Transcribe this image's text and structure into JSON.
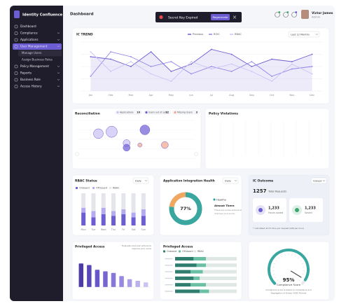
{
  "sidebar": {
    "brand": "Identity Confluence",
    "menu": [
      {
        "label": "Dashboard"
      },
      {
        "label": "Compliance",
        "expandable": true
      },
      {
        "label": "Applications",
        "expandable": true
      },
      {
        "label": "User Management",
        "expandable": true,
        "active": true,
        "children": [
          "Manage Users",
          "Assign Business Roles"
        ]
      },
      {
        "label": "Policy Management",
        "expandable": true
      },
      {
        "label": "Reports",
        "expandable": true
      },
      {
        "label": "Business Role",
        "expandable": true
      },
      {
        "label": "Access History",
        "expandable": true
      }
    ]
  },
  "header": {
    "title": "Dashboard",
    "toast": "Secret Key Expired",
    "toast_button": "Regenerate",
    "user_name": "Victor James",
    "user_role": "Admin"
  },
  "policy_violations": {
    "title": "Policy Violations"
  },
  "ic_outcome": {
    "title": "IC Outcome",
    "filter": "Groups",
    "total": 1257,
    "total_label": "Total Requests",
    "cards": [
      {
        "value": "1,233",
        "label": "Hours saved",
        "color": "#6c5dd3"
      },
      {
        "value": "1,233",
        "label": "Saved",
        "color": "#3fa46a"
      }
    ],
    "footnote": "* calculated at 15 mins per request ($40 per hour)"
  },
  "chart_data": [
    {
      "type": "line",
      "title": "IC TREND",
      "filter": "Last 12 Months",
      "categories": [
        "Jan",
        "Feb",
        "Mar",
        "Apr",
        "May",
        "Jun",
        "Jul",
        "Aug",
        "Sep",
        "Oct",
        "Nov",
        "Dec"
      ],
      "ylim": [
        0,
        100
      ],
      "yticks": [
        0,
        25,
        50,
        75,
        100
      ],
      "grid": true,
      "series": [
        {
          "name": "Previous",
          "color": "#6c5dd3",
          "area": true,
          "values": [
            70,
            65,
            50,
            80,
            40,
            55,
            85,
            75,
            50,
            65,
            60,
            75
          ]
        },
        {
          "name": "ROIC",
          "color": "#8f84e8",
          "values": [
            30,
            80,
            70,
            50,
            60,
            35,
            50,
            40,
            60,
            30,
            45,
            50
          ]
        },
        {
          "name": "RBAC",
          "color": "#c9c3f5",
          "values": [
            80,
            40,
            60,
            35,
            20,
            60,
            45,
            55,
            40,
            20,
            55,
            35
          ]
        }
      ]
    },
    {
      "type": "scatter",
      "title": "Reconciliation",
      "xlim": [
        0,
        7
      ],
      "ylim": [
        0,
        100
      ],
      "series": [
        {
          "name": "Applications",
          "count": 10,
          "color": "#c7c0f4",
          "x": [
            1.2,
            2.0,
            2.9
          ],
          "y": [
            65,
            70,
            40
          ],
          "size": [
            7,
            8,
            5
          ]
        },
        {
          "name": "Users out of sync",
          "count": 12,
          "color": "#6c5dd3",
          "x": [
            4.0,
            2.9
          ],
          "y": [
            75,
            28
          ],
          "size": [
            7,
            5
          ]
        },
        {
          "name": "Missing Users",
          "count": 3,
          "color": "#f4a58a",
          "x": [
            5.2,
            3.7
          ],
          "y": [
            35,
            35
          ],
          "size": [
            5,
            3
          ]
        }
      ]
    },
    {
      "type": "bar",
      "stacked": true,
      "title": "RBAC Status",
      "filter": "Daily",
      "categories": [
        "Mon",
        "Tue",
        "Wed",
        "Thu",
        "Fri",
        "Sat",
        "Sun"
      ],
      "ylim": [
        0,
        100
      ],
      "series": [
        {
          "name": "Onboard",
          "color": "#6c5dd3",
          "values": [
            40,
            25,
            35,
            30,
            35,
            25,
            30
          ]
        },
        {
          "name": "Off-board",
          "color": "#b3aaf0",
          "values": [
            15,
            20,
            20,
            15,
            15,
            15,
            20
          ]
        },
        {
          "name": "RBAC",
          "color": "#e4e6ec",
          "values": [
            45,
            55,
            45,
            55,
            50,
            60,
            50
          ]
        }
      ]
    },
    {
      "type": "pie",
      "title": "Application Integration Health",
      "filter": "Daily",
      "categories": [
        "Healthy",
        null
      ],
      "values": [
        77,
        23
      ],
      "colors": [
        "#3aa6a0",
        "#f0a860"
      ],
      "center_label": "77%",
      "status": "Almost There",
      "status_note": [
        "There are some actions to",
        "improve your score"
      ]
    },
    {
      "type": "bar",
      "title": "Privileged Access",
      "subtitle": [
        "Evaluate more bar actions to",
        "improve your score"
      ],
      "categories": [
        null,
        null,
        null,
        null,
        null,
        null,
        null,
        null,
        null
      ],
      "values": [
        75,
        70,
        55,
        50,
        45,
        35,
        25,
        20,
        15
      ],
      "ylim": [
        0,
        100
      ],
      "colors": [
        "#4b3aa8",
        "#5847b8",
        "#6656c8",
        "#7666d3",
        "#8677db",
        "#9789e2",
        "#a99de8",
        "#bab1ee",
        "#cbc4f3"
      ]
    },
    {
      "type": "bar",
      "orientation": "horizontal",
      "stacked": true,
      "title": "Privileged Access",
      "categories": [
        null,
        null,
        null,
        null,
        null,
        null
      ],
      "xlim": [
        0,
        100
      ],
      "series": [
        {
          "name": "Onboard",
          "color": "#2f7d6f",
          "values": [
            30,
            35,
            25,
            30,
            25,
            40
          ]
        },
        {
          "name": "Off-board",
          "color": "#6bbfa5",
          "values": [
            20,
            15,
            20,
            10,
            25,
            15
          ]
        },
        {
          "name": "RBAC",
          "color": "#dfe8e5",
          "values": [
            50,
            50,
            55,
            60,
            50,
            45
          ]
        }
      ]
    },
    {
      "type": "gauge",
      "title": "Compliance Score",
      "value": 95,
      "value_label": "95%",
      "ylim": [
        0,
        100
      ],
      "color": "#3aa6a0",
      "note": [
        "Compliance score is based on Compliance and",
        "Segregation of Duties (SOD) Policies"
      ]
    }
  ]
}
